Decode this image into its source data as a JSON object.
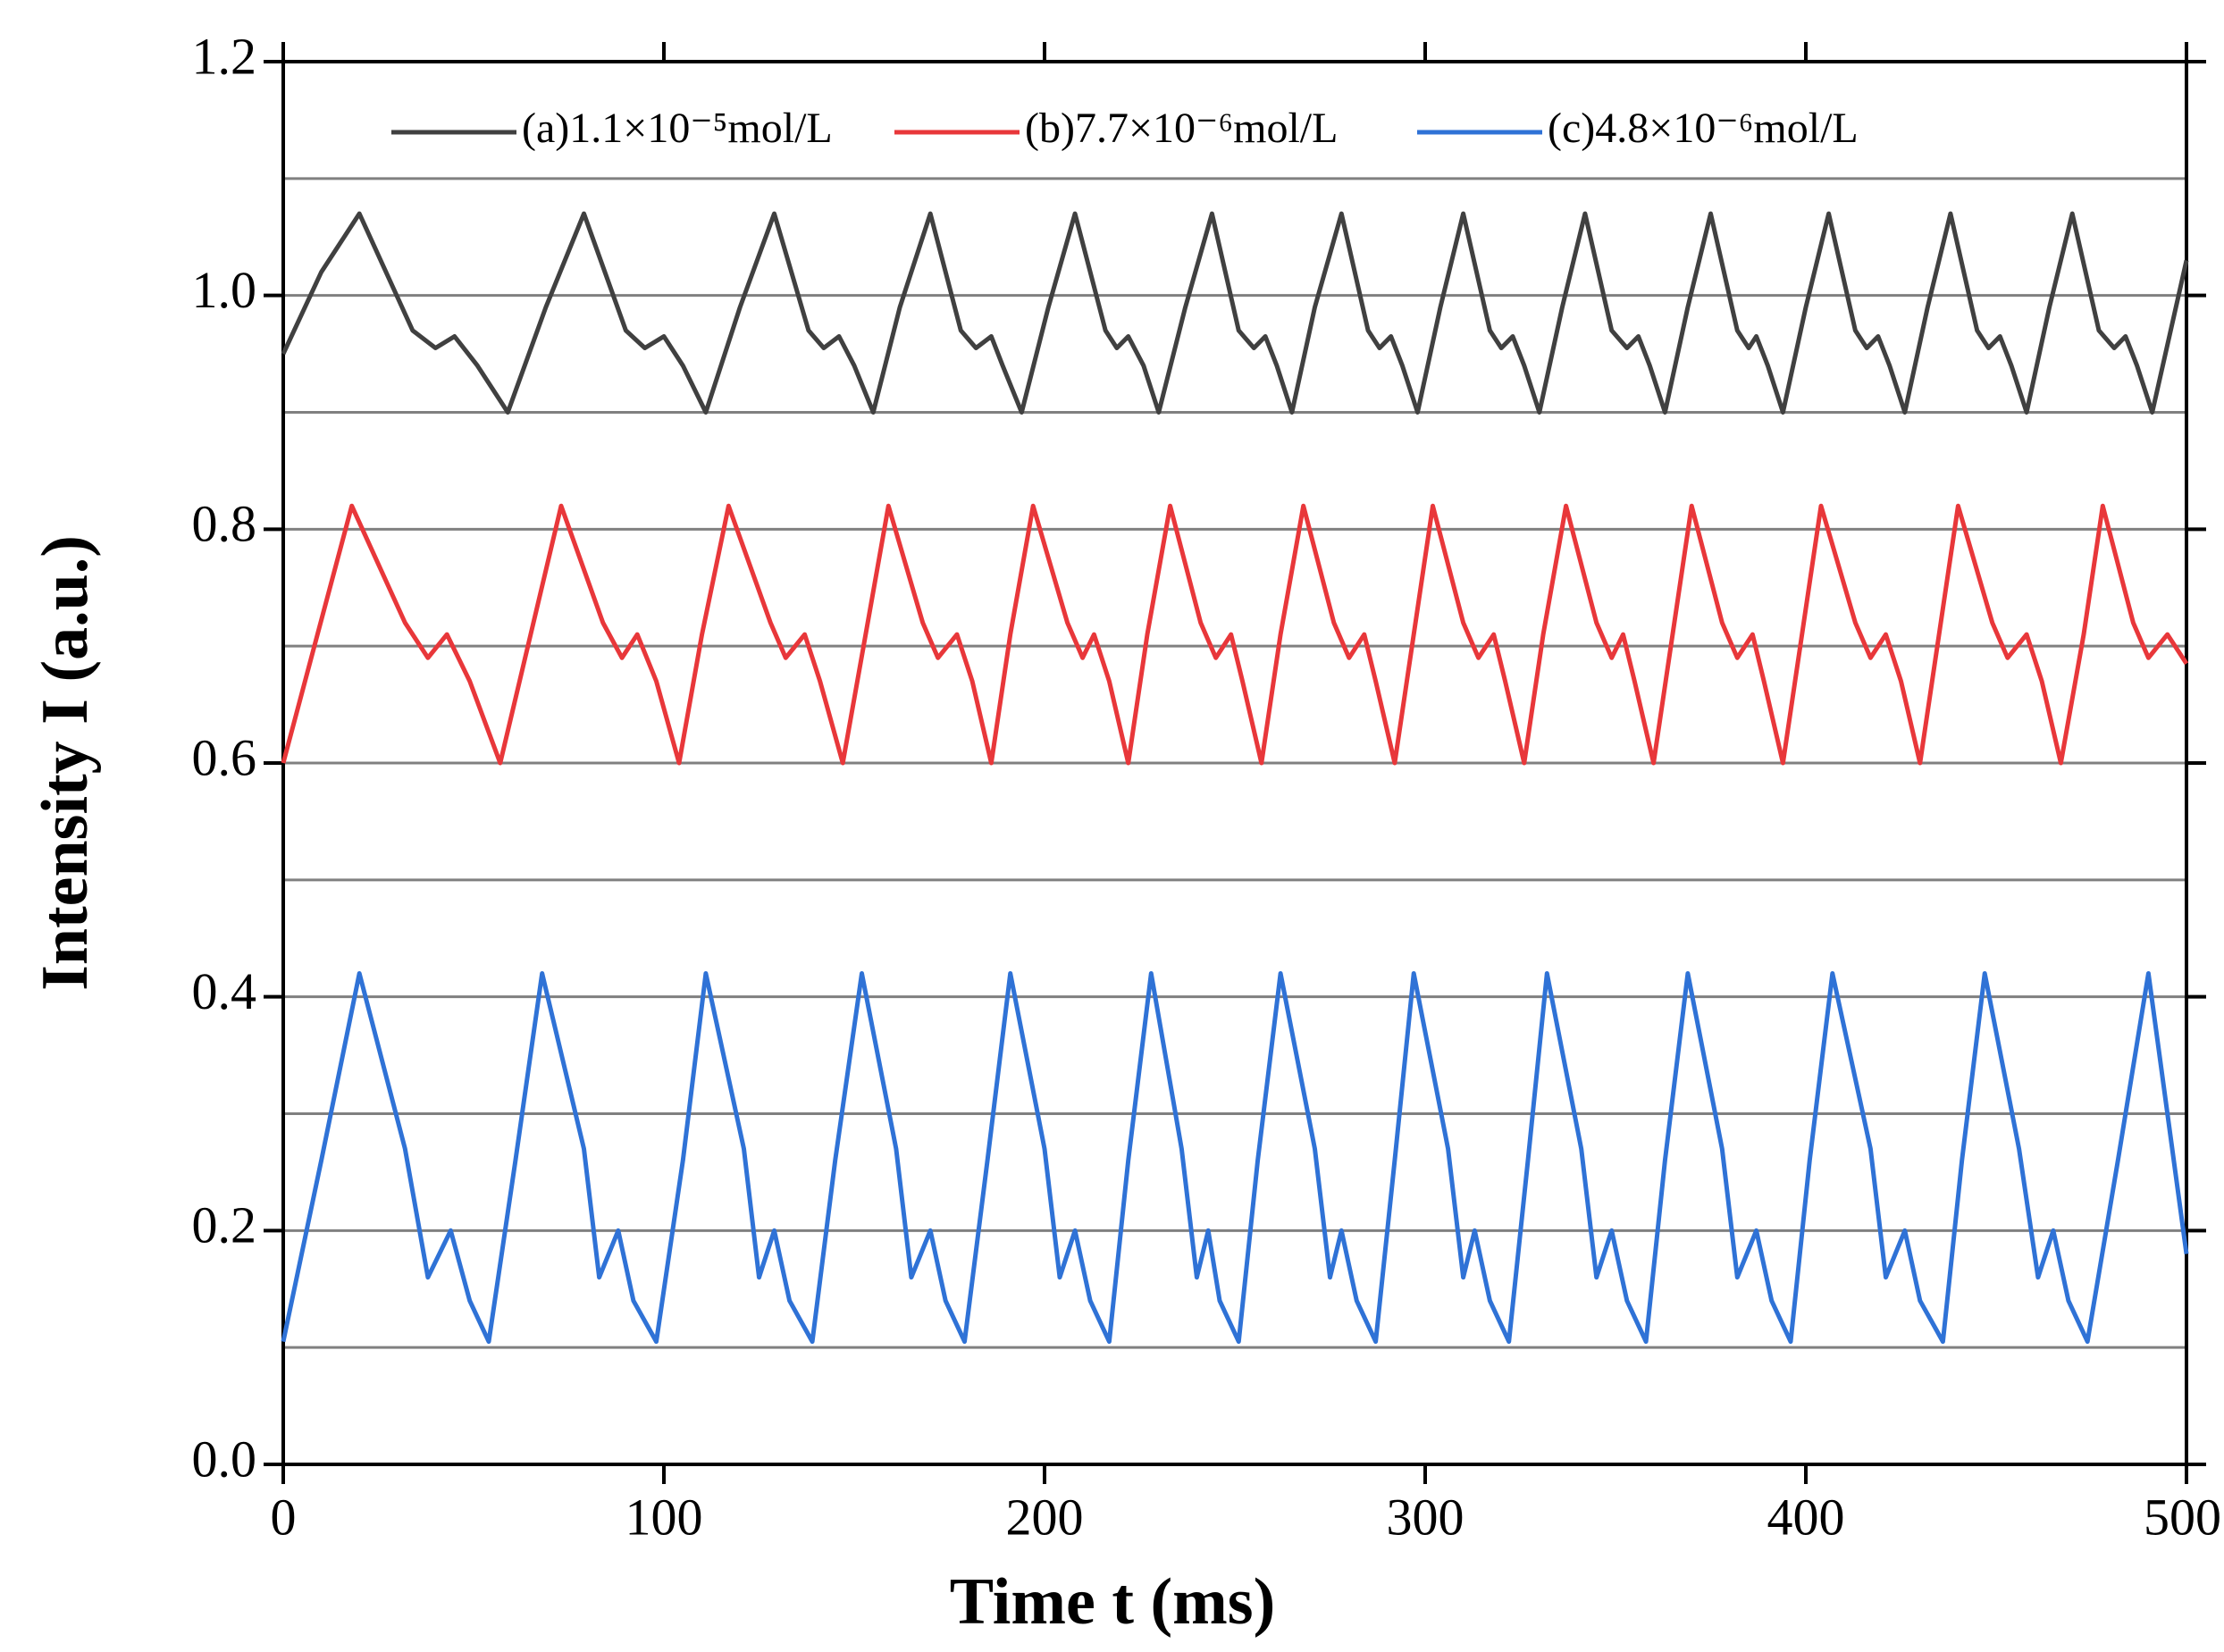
{
  "chart_data": {
    "type": "line",
    "xlabel": "Time t (ms)",
    "ylabel": "Intensity I (a.u.)",
    "xlim": [
      0,
      500
    ],
    "ylim": [
      0,
      1.2
    ],
    "xticks": [
      0,
      100,
      200,
      300,
      400,
      500
    ],
    "yticks": [
      {
        "value": 0,
        "label": "0.0"
      },
      {
        "value": 0.2,
        "label": "0.2"
      },
      {
        "value": 0.4,
        "label": "0.4"
      },
      {
        "value": 0.6,
        "label": "0.6"
      },
      {
        "value": 0.8,
        "label": "0.8"
      },
      {
        "value": 1.0,
        "label": "1.0"
      },
      {
        "value": 1.2,
        "label": "1.2"
      }
    ],
    "grid_lines": [
      0.1,
      0.2,
      0.3,
      0.4,
      0.5,
      0.6,
      0.7,
      0.8,
      0.9,
      1.0,
      1.1
    ],
    "legend": "top",
    "series": [
      {
        "name": "(a)1.1×10⁻⁵mol/L",
        "color": "#404040",
        "x": [
          0,
          10,
          20,
          34,
          40,
          45,
          51,
          59,
          69,
          79,
          90,
          95,
          100,
          105,
          111,
          120,
          129,
          138,
          142,
          146,
          150,
          155,
          162,
          170,
          178,
          182,
          186,
          189,
          194,
          201,
          208,
          216,
          219,
          222,
          226,
          230,
          237,
          244,
          251,
          255,
          258,
          261,
          265,
          271,
          278,
          285,
          288,
          291,
          294,
          298,
          304,
          310,
          317,
          320,
          323,
          326,
          330,
          336,
          342,
          349,
          353,
          356,
          359,
          363,
          369,
          375,
          382,
          385,
          387,
          390,
          394,
          400,
          406,
          413,
          416,
          419,
          422,
          426,
          432,
          438,
          445,
          448,
          451,
          454,
          458,
          464,
          470,
          477,
          481,
          484,
          487,
          491,
          500
        ],
        "values": [
          0.95,
          1.02,
          1.07,
          0.97,
          0.955,
          0.965,
          0.94,
          0.9,
          0.99,
          1.07,
          0.97,
          0.955,
          0.965,
          0.94,
          0.9,
          0.99,
          1.07,
          0.97,
          0.955,
          0.965,
          0.94,
          0.9,
          0.99,
          1.07,
          0.97,
          0.955,
          0.965,
          0.94,
          0.9,
          0.99,
          1.07,
          0.97,
          0.955,
          0.965,
          0.94,
          0.9,
          0.99,
          1.07,
          0.97,
          0.955,
          0.965,
          0.94,
          0.9,
          0.99,
          1.07,
          0.97,
          0.955,
          0.965,
          0.94,
          0.9,
          0.99,
          1.07,
          0.97,
          0.955,
          0.965,
          0.94,
          0.9,
          0.99,
          1.07,
          0.97,
          0.955,
          0.965,
          0.94,
          0.9,
          0.99,
          1.07,
          0.97,
          0.955,
          0.965,
          0.94,
          0.9,
          0.99,
          1.07,
          0.97,
          0.955,
          0.965,
          0.94,
          0.9,
          0.99,
          1.07,
          0.97,
          0.955,
          0.965,
          0.94,
          0.9,
          0.99,
          1.07,
          0.97,
          0.955,
          0.965,
          0.94,
          0.9,
          1.03
        ]
      },
      {
        "name": "(b)7.7×10⁻⁶mol/L",
        "color": "#e8373a",
        "x": [
          0,
          9,
          18,
          32,
          38,
          43,
          49,
          57,
          65,
          73,
          84,
          89,
          93,
          98,
          104,
          110,
          117,
          128,
          132,
          137,
          141,
          147,
          153,
          159,
          168,
          172,
          177,
          181,
          186,
          191,
          197,
          206,
          210,
          213,
          217,
          222,
          227,
          233,
          241,
          245,
          249,
          252,
          257,
          262,
          268,
          276,
          280,
          284,
          287,
          292,
          297,
          302,
          310,
          314,
          318,
          321,
          326,
          331,
          337,
          345,
          349,
          352,
          355,
          360,
          365,
          370,
          378,
          382,
          386,
          389,
          394,
          399,
          404,
          413,
          417,
          421,
          425,
          430,
          435,
          440,
          449,
          453,
          458,
          462,
          467,
          473,
          478,
          486,
          490,
          495,
          500
        ],
        "values": [
          0.6,
          0.71,
          0.82,
          0.72,
          0.69,
          0.71,
          0.67,
          0.6,
          0.71,
          0.82,
          0.72,
          0.69,
          0.71,
          0.67,
          0.6,
          0.71,
          0.82,
          0.72,
          0.69,
          0.71,
          0.67,
          0.6,
          0.71,
          0.82,
          0.72,
          0.69,
          0.71,
          0.67,
          0.6,
          0.71,
          0.82,
          0.72,
          0.69,
          0.71,
          0.67,
          0.6,
          0.71,
          0.82,
          0.72,
          0.69,
          0.71,
          0.67,
          0.6,
          0.71,
          0.82,
          0.72,
          0.69,
          0.71,
          0.67,
          0.6,
          0.71,
          0.82,
          0.72,
          0.69,
          0.71,
          0.67,
          0.6,
          0.71,
          0.82,
          0.72,
          0.69,
          0.71,
          0.67,
          0.6,
          0.71,
          0.82,
          0.72,
          0.69,
          0.71,
          0.67,
          0.6,
          0.71,
          0.82,
          0.72,
          0.69,
          0.71,
          0.67,
          0.6,
          0.71,
          0.82,
          0.72,
          0.69,
          0.71,
          0.67,
          0.6,
          0.71,
          0.82,
          0.72,
          0.69,
          0.71,
          0.685
        ]
      },
      {
        "name": "(c)4.8×10⁻⁶mol/L",
        "color": "#2f72d6",
        "x": [
          0,
          10,
          20,
          32,
          38,
          44,
          49,
          54,
          61,
          68,
          79,
          83,
          88,
          92,
          98,
          105,
          111,
          121,
          125,
          129,
          133,
          139,
          145,
          152,
          161,
          165,
          170,
          174,
          179,
          185,
          191,
          200,
          204,
          208,
          212,
          217,
          222,
          228,
          236,
          240,
          243,
          246,
          251,
          256,
          262,
          271,
          275,
          278,
          282,
          287,
          292,
          297,
          306,
          310,
          313,
          317,
          322,
          327,
          332,
          341,
          345,
          349,
          353,
          358,
          363,
          369,
          378,
          382,
          387,
          391,
          396,
          401,
          407,
          417,
          421,
          426,
          430,
          436,
          441,
          447,
          456,
          461,
          465,
          469,
          474,
          482,
          490,
          500
        ],
        "values": [
          0.105,
          0.26,
          0.42,
          0.27,
          0.16,
          0.2,
          0.14,
          0.105,
          0.26,
          0.42,
          0.27,
          0.16,
          0.2,
          0.14,
          0.105,
          0.26,
          0.42,
          0.27,
          0.16,
          0.2,
          0.14,
          0.105,
          0.26,
          0.42,
          0.27,
          0.16,
          0.2,
          0.14,
          0.105,
          0.26,
          0.42,
          0.27,
          0.16,
          0.2,
          0.14,
          0.105,
          0.26,
          0.42,
          0.27,
          0.16,
          0.2,
          0.14,
          0.105,
          0.26,
          0.42,
          0.27,
          0.16,
          0.2,
          0.14,
          0.105,
          0.26,
          0.42,
          0.27,
          0.16,
          0.2,
          0.14,
          0.105,
          0.26,
          0.42,
          0.27,
          0.16,
          0.2,
          0.14,
          0.105,
          0.26,
          0.42,
          0.27,
          0.16,
          0.2,
          0.14,
          0.105,
          0.26,
          0.42,
          0.27,
          0.16,
          0.2,
          0.14,
          0.105,
          0.26,
          0.42,
          0.27,
          0.16,
          0.2,
          0.14,
          0.105,
          0.26,
          0.42,
          0.18
        ]
      }
    ]
  }
}
